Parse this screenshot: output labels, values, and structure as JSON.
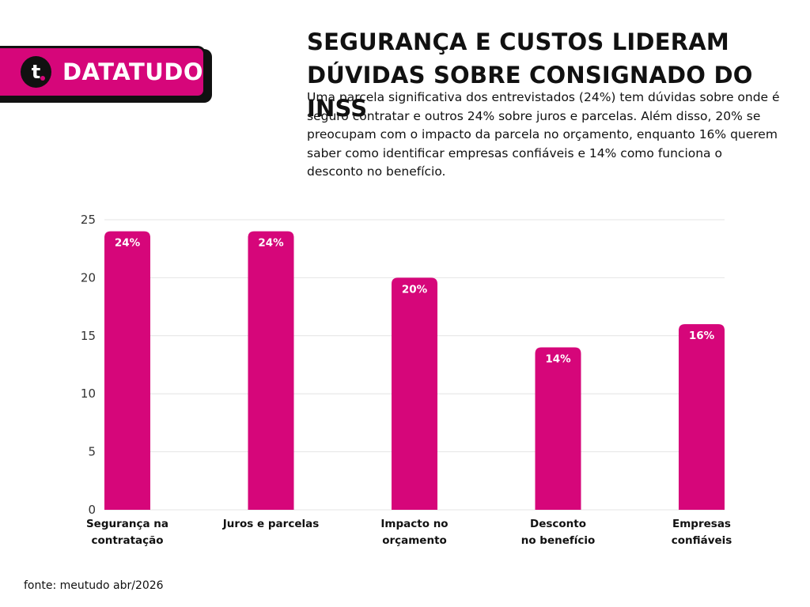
{
  "brand": {
    "name": "DATATUDO",
    "logo_letter": "t",
    "color": "#d6067a"
  },
  "title": "SEGURANÇA E CUSTOS LIDERAM\nDÚVIDAS SOBRE CONSIGNADO DO INSS",
  "subtitle": "Uma parcela significativa dos entrevistados (24%) tem dúvidas sobre onde é seguro contratar e outros 24% sobre juros e parcelas. Além disso, 20% se preocupam com o impacto da parcela no orçamento, enquanto 16% querem saber como identificar empresas confiáveis e 14% como funciona o desconto no benefício.",
  "source": "fonte: meutudo abr/2026",
  "chart_data": {
    "type": "bar",
    "categories": [
      [
        "Segurança na",
        "contratação"
      ],
      [
        "Juros e parcelas"
      ],
      [
        "Impacto no",
        "orçamento"
      ],
      [
        "Desconto",
        "no benefício"
      ],
      [
        "Empresas",
        "confiáveis"
      ]
    ],
    "values": [
      24,
      24,
      20,
      14,
      16
    ],
    "data_labels": [
      "24%",
      "24%",
      "20%",
      "14%",
      "16%"
    ],
    "ylim": [
      0,
      25
    ],
    "yticks": [
      0,
      5,
      10,
      15,
      20,
      25
    ],
    "grid": true,
    "bar_color": "#d6067a",
    "xlabel": "",
    "ylabel": ""
  }
}
